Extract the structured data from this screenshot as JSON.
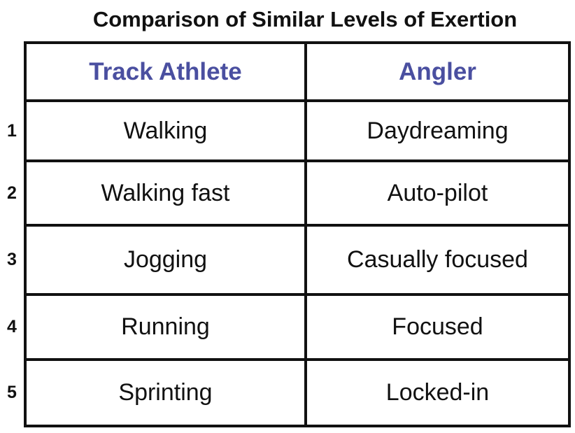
{
  "chart_data": {
    "type": "table",
    "title": "Comparison of Similar Levels of Exertion",
    "columns": [
      "Track Athlete",
      "Angler"
    ],
    "rows": [
      {
        "level": "1",
        "cells": [
          "Walking",
          "Daydreaming"
        ]
      },
      {
        "level": "2",
        "cells": [
          "Walking fast",
          "Auto-pilot"
        ]
      },
      {
        "level": "3",
        "cells": [
          "Jogging",
          "Casually focused"
        ]
      },
      {
        "level": "4",
        "cells": [
          "Running",
          "Focused"
        ]
      },
      {
        "level": "5",
        "cells": [
          "Sprinting",
          "Locked-in"
        ]
      }
    ],
    "header_color": "#4a4fa0",
    "border_color": "#111111"
  }
}
